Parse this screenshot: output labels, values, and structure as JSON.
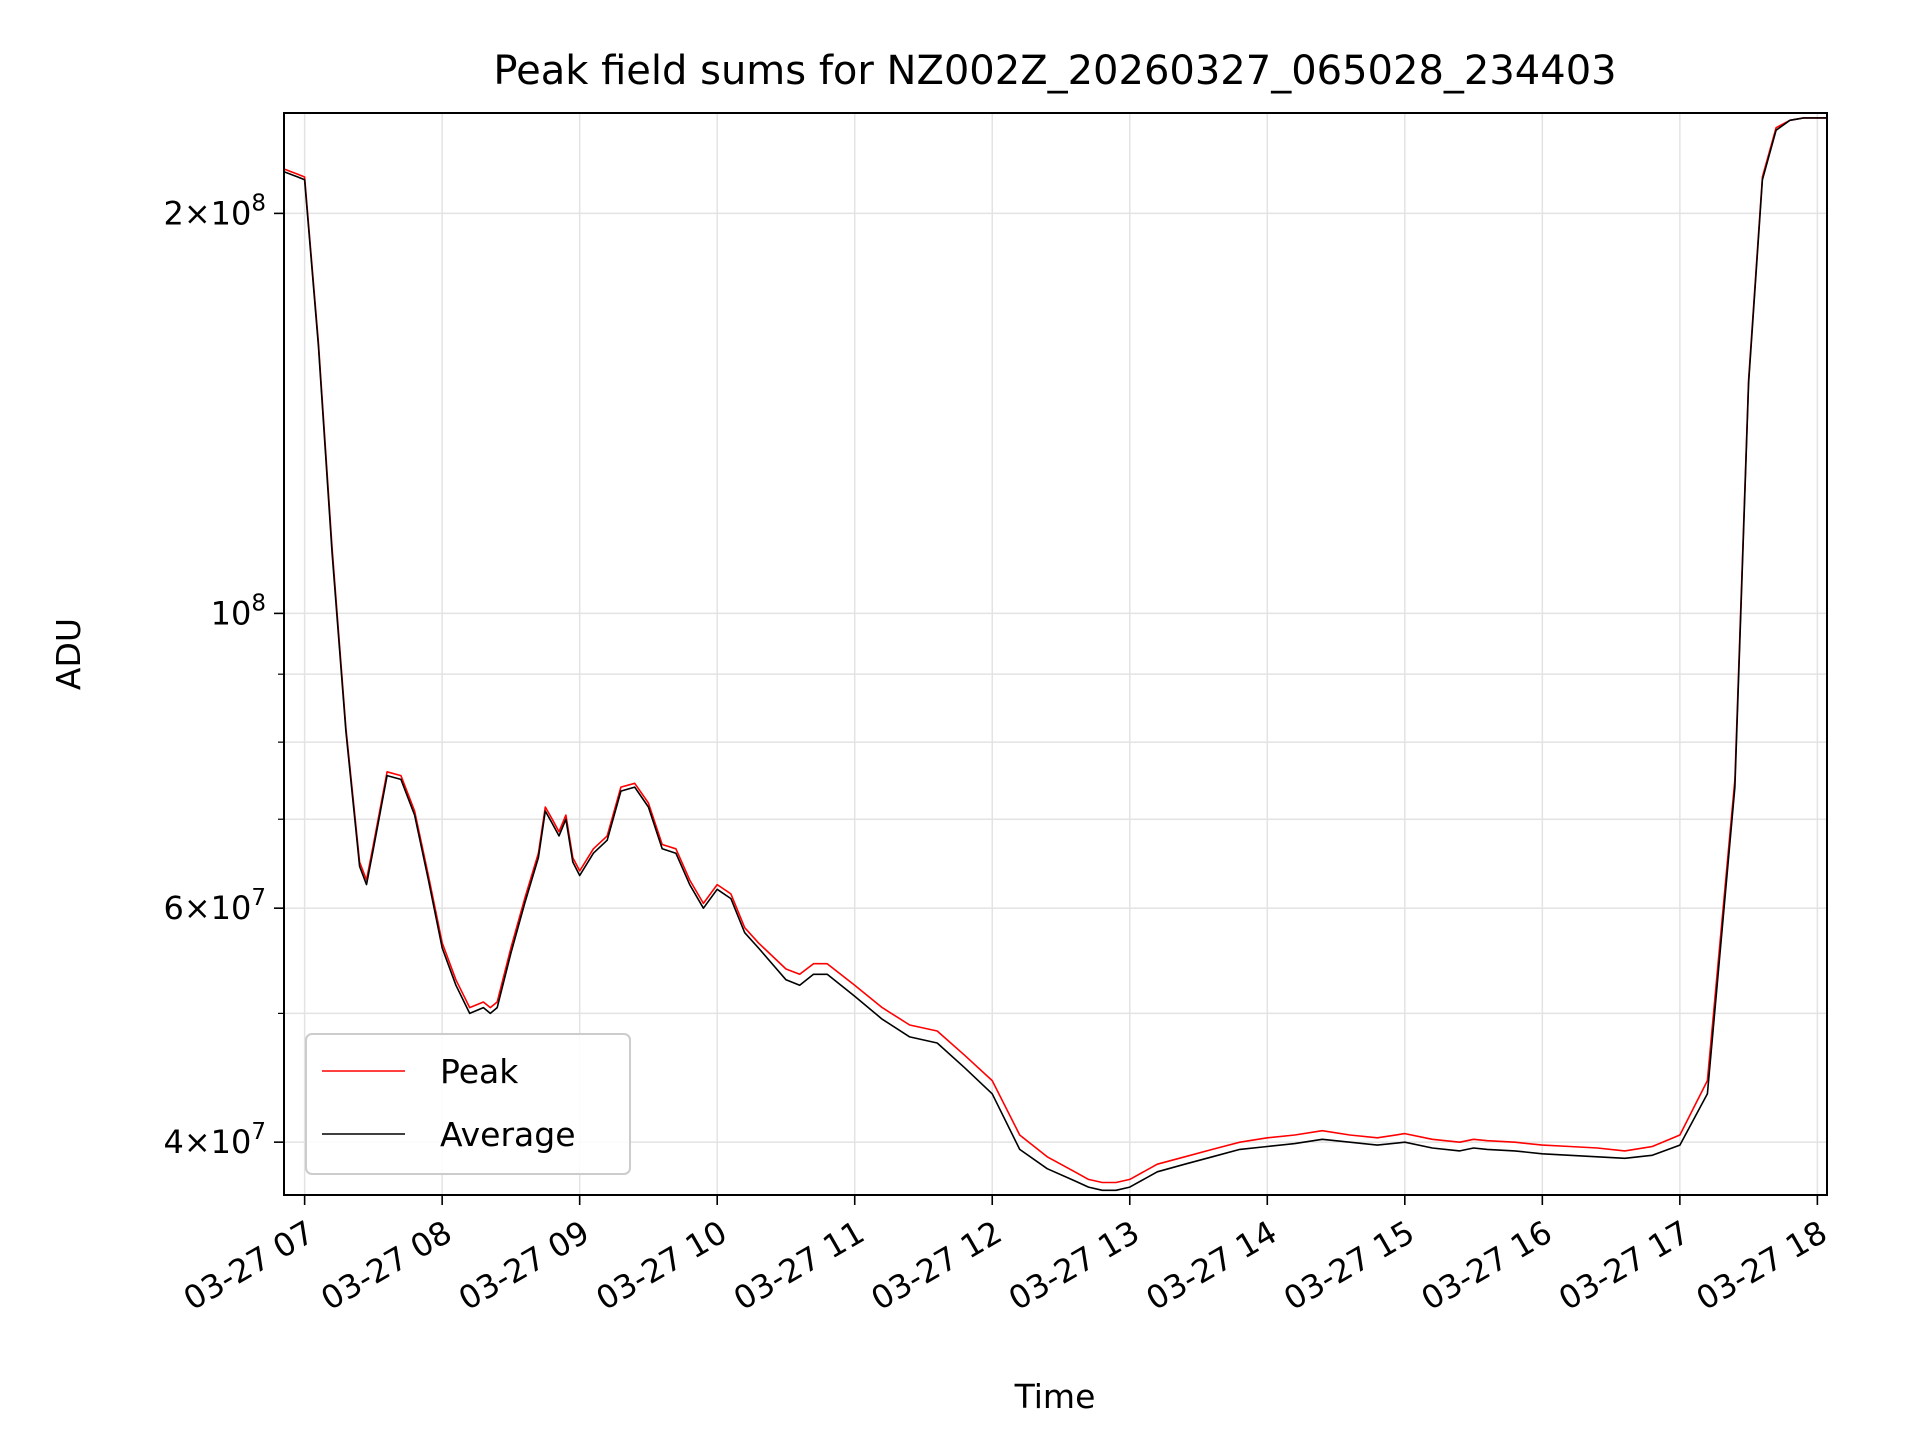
{
  "chart_data": {
    "type": "line",
    "title": "Peak field sums for NZ002Z_20260327_065028_234403",
    "xlabel": "Time",
    "ylabel": "ADU",
    "x_unit": "hour of 2026-03-27 (decimal)",
    "xlim": [
      6.85,
      18.07
    ],
    "ylim": [
      36500000,
      238000000
    ],
    "y_scale": "log",
    "grid": true,
    "legend_position": "lower-left",
    "x_ticks": [
      {
        "value": 7,
        "label": "03-27 07"
      },
      {
        "value": 8,
        "label": "03-27 08"
      },
      {
        "value": 9,
        "label": "03-27 09"
      },
      {
        "value": 10,
        "label": "03-27 10"
      },
      {
        "value": 11,
        "label": "03-27 11"
      },
      {
        "value": 12,
        "label": "03-27 12"
      },
      {
        "value": 13,
        "label": "03-27 13"
      },
      {
        "value": 14,
        "label": "03-27 14"
      },
      {
        "value": 15,
        "label": "03-27 15"
      },
      {
        "value": 16,
        "label": "03-27 16"
      },
      {
        "value": 17,
        "label": "03-27 17"
      },
      {
        "value": 18,
        "label": "03-27 18"
      }
    ],
    "y_major_ticks": [
      {
        "value": 40000000,
        "mant": "4",
        "exp": "7"
      },
      {
        "value": 60000000,
        "mant": "6",
        "exp": "7"
      },
      {
        "value": 100000000,
        "mant": "",
        "exp": "8"
      },
      {
        "value": 200000000,
        "mant": "2",
        "exp": "8"
      }
    ],
    "y_minor_ticks": [
      50000000,
      70000000,
      80000000,
      90000000
    ],
    "series": [
      {
        "name": "Peak",
        "color": "#ff0000",
        "x": [
          6.85,
          6.95,
          7.0,
          7.1,
          7.2,
          7.3,
          7.4,
          7.45,
          7.5,
          7.6,
          7.7,
          7.8,
          7.9,
          8.0,
          8.1,
          8.2,
          8.3,
          8.35,
          8.4,
          8.5,
          8.6,
          8.7,
          8.75,
          8.8,
          8.85,
          8.9,
          8.95,
          9.0,
          9.1,
          9.2,
          9.3,
          9.4,
          9.5,
          9.6,
          9.7,
          9.8,
          9.9,
          10.0,
          10.1,
          10.2,
          10.3,
          10.5,
          10.6,
          10.7,
          10.8,
          11.0,
          11.2,
          11.4,
          11.6,
          11.8,
          12.0,
          12.2,
          12.4,
          12.6,
          12.7,
          12.8,
          12.9,
          13.0,
          13.2,
          13.4,
          13.6,
          13.8,
          14.0,
          14.2,
          14.4,
          14.6,
          14.8,
          15.0,
          15.2,
          15.4,
          15.5,
          15.6,
          15.8,
          16.0,
          16.2,
          16.4,
          16.6,
          16.8,
          17.0,
          17.2,
          17.4,
          17.5,
          17.6,
          17.7,
          17.8,
          17.9,
          18.0,
          18.07
        ],
        "y": [
          216000000,
          214000000,
          213000000,
          160000000,
          112000000,
          82000000,
          65000000,
          63000000,
          67000000,
          76000000,
          75500000,
          71000000,
          63500000,
          56500000,
          53000000,
          50500000,
          51000000,
          50500000,
          51000000,
          56000000,
          61000000,
          66000000,
          71500000,
          70000000,
          68500000,
          70500000,
          65500000,
          64000000,
          66500000,
          68000000,
          74000000,
          74500000,
          72000000,
          67000000,
          66500000,
          63000000,
          60500000,
          62500000,
          61500000,
          58000000,
          56500000,
          54000000,
          53500000,
          54500000,
          54500000,
          52500000,
          50500000,
          49000000,
          48500000,
          46500000,
          44500000,
          40500000,
          39000000,
          38000000,
          37500000,
          37300000,
          37300000,
          37500000,
          38500000,
          39000000,
          39500000,
          40000000,
          40300000,
          40500000,
          40800000,
          40500000,
          40300000,
          40600000,
          40200000,
          40000000,
          40200000,
          40100000,
          40000000,
          39800000,
          39700000,
          39600000,
          39400000,
          39700000,
          40500000,
          44500000,
          75000000,
          150000000,
          213000000,
          232000000,
          235000000,
          236000000,
          236000000,
          236000000
        ]
      },
      {
        "name": "Average",
        "color": "#000000",
        "x": [
          6.85,
          6.95,
          7.0,
          7.1,
          7.2,
          7.3,
          7.4,
          7.45,
          7.5,
          7.6,
          7.7,
          7.8,
          7.9,
          8.0,
          8.1,
          8.2,
          8.3,
          8.35,
          8.4,
          8.5,
          8.6,
          8.7,
          8.75,
          8.8,
          8.85,
          8.9,
          8.95,
          9.0,
          9.1,
          9.2,
          9.3,
          9.4,
          9.5,
          9.6,
          9.7,
          9.8,
          9.9,
          10.0,
          10.1,
          10.2,
          10.3,
          10.5,
          10.6,
          10.7,
          10.8,
          11.0,
          11.2,
          11.4,
          11.6,
          11.8,
          12.0,
          12.2,
          12.4,
          12.6,
          12.7,
          12.8,
          12.9,
          13.0,
          13.2,
          13.4,
          13.6,
          13.8,
          14.0,
          14.2,
          14.4,
          14.6,
          14.8,
          15.0,
          15.2,
          15.4,
          15.5,
          15.6,
          15.8,
          16.0,
          16.2,
          16.4,
          16.6,
          16.8,
          17.0,
          17.2,
          17.4,
          17.5,
          17.6,
          17.7,
          17.8,
          17.9,
          18.0,
          18.07
        ],
        "y": [
          215000000,
          213000000,
          212000000,
          159000000,
          111000000,
          81500000,
          64500000,
          62500000,
          66500000,
          75500000,
          75000000,
          70500000,
          63000000,
          56000000,
          52500000,
          50000000,
          50500000,
          50000000,
          50500000,
          55500000,
          60500000,
          65500000,
          71000000,
          69500000,
          68000000,
          70000000,
          65000000,
          63500000,
          66000000,
          67500000,
          73500000,
          74000000,
          71500000,
          66500000,
          66000000,
          62500000,
          60000000,
          62000000,
          61000000,
          57500000,
          56000000,
          53000000,
          52500000,
          53500000,
          53500000,
          51500000,
          49500000,
          48000000,
          47500000,
          45500000,
          43500000,
          39500000,
          38200000,
          37400000,
          37000000,
          36800000,
          36800000,
          37000000,
          38000000,
          38500000,
          39000000,
          39500000,
          39700000,
          39900000,
          40200000,
          40000000,
          39800000,
          40000000,
          39600000,
          39400000,
          39600000,
          39500000,
          39400000,
          39200000,
          39100000,
          39000000,
          38900000,
          39100000,
          39800000,
          43500000,
          74000000,
          149000000,
          212000000,
          231000000,
          235000000,
          236000000,
          236000000,
          236000000
        ]
      }
    ]
  }
}
